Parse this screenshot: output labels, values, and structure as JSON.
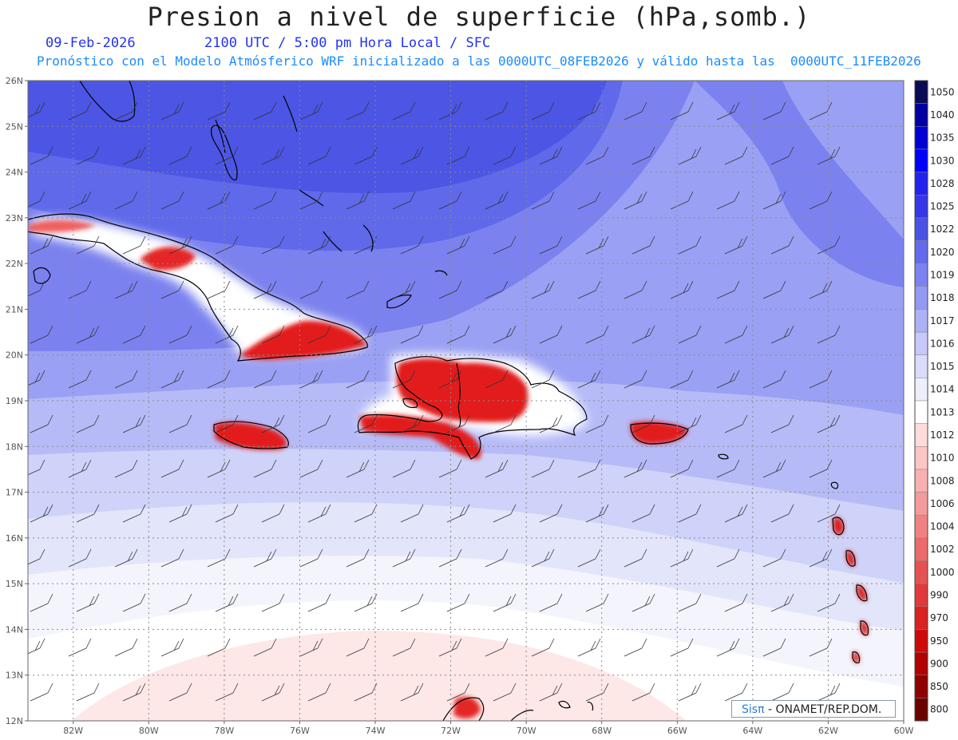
{
  "header": {
    "title": "Presion a nivel de superficie (hPa,somb.)",
    "date": "09-Feb-2026",
    "valid_time": "2100 UTC / 5:00 pm Hora Local / SFC",
    "forecast_note": "Pronóstico con el Modelo Atmósferico WRF inicializado a las 0000UTC_08FEB2026 y válido hasta las  0000UTC_11FEB2026"
  },
  "map": {
    "lat_labels": [
      "26N",
      "25N",
      "24N",
      "23N",
      "22N",
      "21N",
      "20N",
      "19N",
      "18N",
      "17N",
      "16N",
      "15N",
      "14N",
      "13N",
      "12N"
    ],
    "lon_labels": [
      "82W",
      "80W",
      "78W",
      "76W",
      "74W",
      "72W",
      "70W",
      "68W",
      "66W",
      "64W",
      "62W",
      "60W"
    ],
    "lat_range": [
      12,
      26
    ],
    "lon_range": [
      -83.2,
      -60
    ],
    "grid": true,
    "background_band_colors": [
      "#4c55e4",
      "#5f69ea",
      "#7b82ef",
      "#9aa0f3",
      "#b6bbf7",
      "#cfd3f9",
      "#e3e5fb",
      "#f3f4fc",
      "#ffffff",
      "#fde7e7"
    ],
    "land_high_color": "#e21a1a"
  },
  "colorbar": {
    "labels": [
      "1050",
      "1040",
      "1035",
      "1030",
      "1028",
      "1025",
      "1022",
      "1020",
      "1019",
      "1018",
      "1017",
      "1016",
      "1015",
      "1014",
      "1013",
      "1012",
      "1010",
      "1008",
      "1006",
      "1004",
      "1002",
      "1000",
      "990",
      "970",
      "950",
      "900",
      "850",
      "800"
    ],
    "colors": [
      "#0a0a55",
      "#0000a0",
      "#0000d4",
      "#0000ff",
      "#2323f0",
      "#3636e6",
      "#4a52e6",
      "#636bec",
      "#7c83f0",
      "#9499f3",
      "#adb1f6",
      "#c5c8f8",
      "#dadcfa",
      "#eeeffc",
      "#ffffff",
      "#ffdcdc",
      "#fcc6c6",
      "#f9b0b0",
      "#f59a9a",
      "#f18282",
      "#ec6a6a",
      "#e65252",
      "#e03a3a",
      "#d92222",
      "#cc0a0a",
      "#b30000",
      "#8f0000",
      "#6b0000"
    ]
  },
  "credit": {
    "brand": "Sisπ",
    "text": " - ONAMET/REP.DOM."
  }
}
